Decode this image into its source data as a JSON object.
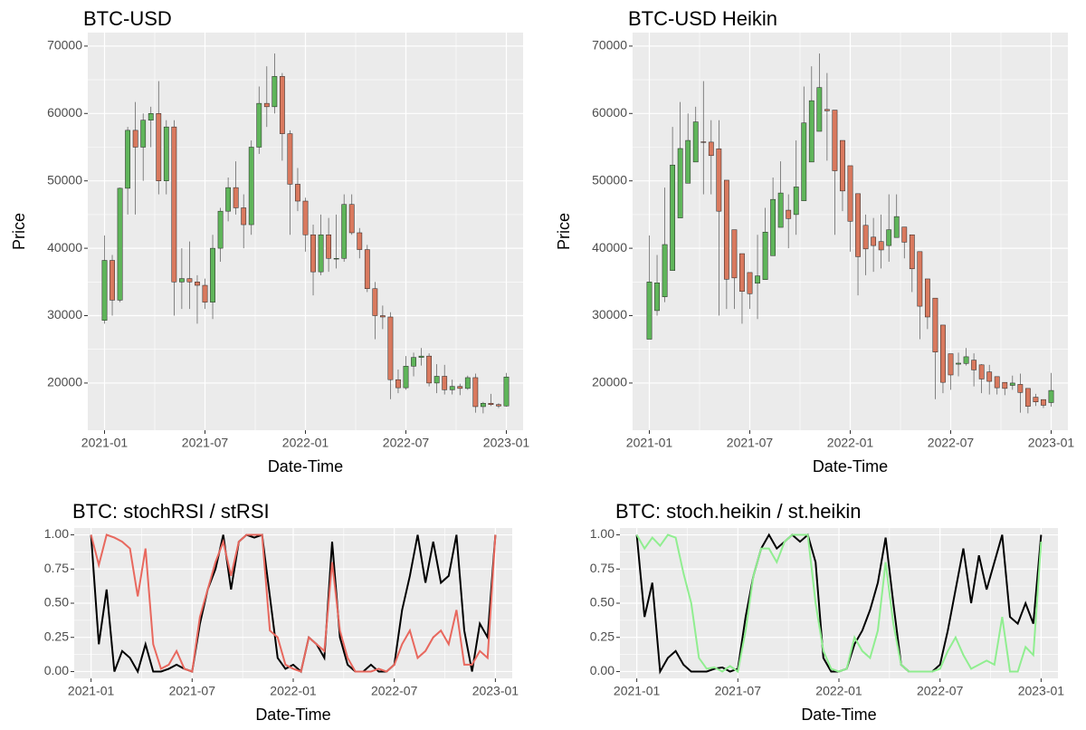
{
  "chart_data": [
    {
      "type": "candlestick",
      "title": "BTC-USD",
      "x_label": "Date-Time",
      "y_label": "Price",
      "xlim": [
        "2020-12",
        "2023-02"
      ],
      "xticks": [
        "2021-01",
        "2021-07",
        "2022-01",
        "2022-07",
        "2023-01"
      ],
      "ylim": [
        13000,
        72000
      ],
      "yticks": [
        20000,
        30000,
        40000,
        50000,
        60000,
        70000
      ],
      "grid": true,
      "up_color": "#5fb55a",
      "down_color": "#d9795e",
      "open": [
        29300,
        38200,
        32300,
        48900,
        57500,
        55000,
        59000,
        60000,
        50000,
        58000,
        35000,
        35500,
        35000,
        34500,
        32000,
        40000,
        45500,
        49000,
        46000,
        43500,
        55000,
        61500,
        61000,
        65500,
        57000,
        49500,
        47000,
        42000,
        36500,
        42000,
        38500,
        38500,
        46500,
        42300,
        39800,
        34000,
        30000,
        29800,
        20500,
        19300,
        22500,
        23800,
        24000,
        20000,
        21000,
        19000,
        19500,
        19200,
        20800,
        16500,
        17000,
        16800,
        16600
      ],
      "high": [
        41900,
        39000,
        49000,
        58000,
        61700,
        60000,
        61000,
        64800,
        59000,
        59000,
        40000,
        41000,
        36000,
        35500,
        42000,
        46000,
        50500,
        52900,
        48000,
        56000,
        64000,
        67000,
        68900,
        66000,
        57500,
        51900,
        47500,
        43500,
        45000,
        44500,
        45000,
        48000,
        48000,
        43000,
        40500,
        35000,
        31500,
        30500,
        22000,
        24000,
        24500,
        25200,
        24400,
        22800,
        22700,
        20500,
        19900,
        21100,
        21400,
        17200,
        18400,
        17000,
        21500
      ],
      "low": [
        28800,
        30000,
        32000,
        45000,
        45000,
        50000,
        55000,
        48000,
        48000,
        30000,
        31000,
        31000,
        28800,
        31000,
        29500,
        38000,
        44000,
        45000,
        40000,
        42000,
        54000,
        58000,
        60000,
        53000,
        42000,
        45500,
        39500,
        33000,
        36000,
        36500,
        37000,
        38000,
        42000,
        38500,
        33500,
        26500,
        28000,
        17600,
        18500,
        19000,
        21000,
        22600,
        19500,
        18500,
        18300,
        18300,
        18200,
        19000,
        15600,
        15500,
        16600,
        16300,
        16500
      ],
      "close": [
        38200,
        32300,
        48900,
        57500,
        55000,
        59000,
        60000,
        50000,
        58000,
        35000,
        35500,
        35000,
        34500,
        32000,
        40000,
        45500,
        49000,
        46000,
        43500,
        55000,
        61500,
        61000,
        65500,
        57000,
        49500,
        47000,
        42000,
        36500,
        42000,
        38500,
        38500,
        46500,
        42300,
        39800,
        34000,
        30000,
        29800,
        20500,
        19300,
        22500,
        23800,
        24000,
        20000,
        21000,
        19000,
        19500,
        19200,
        20800,
        16500,
        17000,
        16800,
        16600,
        20900
      ]
    },
    {
      "type": "candlestick",
      "title": "BTC-USD Heikin",
      "x_label": "Date-Time",
      "y_label": "Price",
      "xlim": [
        "2020-12",
        "2023-02"
      ],
      "xticks": [
        "2021-01",
        "2021-07",
        "2022-01",
        "2022-07",
        "2023-01"
      ],
      "ylim": [
        13000,
        72000
      ],
      "yticks": [
        20000,
        30000,
        40000,
        50000,
        60000,
        70000
      ],
      "grid": true,
      "up_color": "#5fb55a",
      "down_color": "#d9795e",
      "open": [
        26500,
        30750,
        32800,
        36700,
        44500,
        49650,
        52800,
        55800,
        55750,
        54750,
        50100,
        42750,
        39200,
        36400,
        34800,
        35350,
        38900,
        43100,
        45650,
        45000,
        47050,
        52800,
        57350,
        60600,
        60500,
        56000,
        52250,
        48100,
        43400,
        41650,
        41000,
        40400,
        41600,
        43150,
        42000,
        39500,
        35450,
        32600,
        28600,
        24350,
        22800,
        22900,
        23400,
        22700,
        21650,
        20950,
        20100,
        19650,
        19800,
        19200,
        17900,
        17550,
        17100
      ],
      "high": [
        41900,
        39000,
        49000,
        58000,
        61700,
        60000,
        61000,
        64800,
        59000,
        59000,
        50100,
        42750,
        39200,
        36400,
        42000,
        46000,
        50500,
        52900,
        48000,
        56000,
        64000,
        67000,
        68900,
        66000,
        60500,
        56000,
        52250,
        48100,
        45000,
        44500,
        45000,
        48000,
        48000,
        43150,
        42000,
        39500,
        35450,
        32600,
        28600,
        24350,
        24500,
        25200,
        24400,
        22800,
        22700,
        20950,
        20100,
        21100,
        21400,
        19200,
        18400,
        17550,
        21500
      ],
      "low": [
        26500,
        30000,
        32000,
        36700,
        44500,
        49650,
        52800,
        48000,
        48000,
        30000,
        31000,
        31000,
        28800,
        31000,
        29500,
        35350,
        38900,
        43100,
        40000,
        42000,
        47050,
        52800,
        57350,
        53000,
        42000,
        45500,
        39500,
        33000,
        36000,
        36500,
        37000,
        38000,
        41600,
        38500,
        33500,
        26500,
        28000,
        17600,
        18500,
        19000,
        21000,
        22600,
        19500,
        18500,
        18300,
        18300,
        18200,
        19000,
        15600,
        15500,
        16600,
        16300,
        16500
      ],
      "close": [
        35000,
        34875,
        40550,
        52350,
        54800,
        56000,
        58750,
        55700,
        53750,
        45500,
        35400,
        35600,
        33600,
        33250,
        35900,
        42400,
        47250,
        48200,
        44400,
        49100,
        58600,
        61900,
        63850,
        60400,
        51500,
        48500,
        44000,
        38750,
        39900,
        40400,
        39750,
        42750,
        44700,
        40900,
        36950,
        31400,
        29800,
        24600,
        20100,
        21200,
        22950,
        23900,
        21950,
        20600,
        20250,
        19300,
        19200,
        20000,
        18600,
        16550,
        17200,
        16700,
        18900
      ]
    },
    {
      "type": "line",
      "title": "BTC: stochRSI / stRSI",
      "x_label": "Date-Time",
      "xlim": [
        "2020-12",
        "2023-02"
      ],
      "xticks": [
        "2021-01",
        "2021-07",
        "2022-01",
        "2022-07",
        "2023-01"
      ],
      "ylim": [
        -0.05,
        1.05
      ],
      "yticks": [
        {
          "value": 0,
          "label": "0.00"
        },
        {
          "value": 0.25,
          "label": "0.25"
        },
        {
          "value": 0.5,
          "label": "0.50"
        },
        {
          "value": 0.75,
          "label": "0.75"
        },
        {
          "value": 1,
          "label": "1.00"
        }
      ],
      "grid": true,
      "series": [
        {
          "color": "#000000",
          "values": [
            1,
            0.2,
            0.6,
            0,
            0.15,
            0.1,
            0,
            0.2,
            0,
            0,
            0.02,
            0.05,
            0.02,
            0,
            0.35,
            0.6,
            0.75,
            1,
            0.6,
            0.95,
            1,
            0.98,
            1,
            0.55,
            0.1,
            0.02,
            0.05,
            0,
            0.25,
            0.2,
            0.1,
            0.95,
            0.25,
            0.05,
            0,
            0,
            0.05,
            0,
            0,
            0.05,
            0.45,
            0.7,
            1,
            0.65,
            0.95,
            0.65,
            0.7,
            1,
            0.3,
            0,
            0.35,
            0.25,
            1
          ]
        },
        {
          "color": "#e8685e",
          "values": [
            1,
            0.78,
            1,
            0.98,
            0.95,
            0.9,
            0.55,
            0.9,
            0.2,
            0.02,
            0.05,
            0.15,
            0.02,
            0,
            0.4,
            0.6,
            0.8,
            0.95,
            0.7,
            0.95,
            1,
            1,
            1,
            0.3,
            0.25,
            0.05,
            0.02,
            0,
            0.25,
            0.2,
            0.15,
            0.8,
            0.3,
            0.1,
            0,
            0,
            0,
            0.02,
            0,
            0.05,
            0.2,
            0.3,
            0.1,
            0.15,
            0.25,
            0.3,
            0.2,
            0.45,
            0.05,
            0.05,
            0.15,
            0.1,
            1
          ]
        }
      ]
    },
    {
      "type": "line",
      "title": "BTC: stoch.heikin / st.heikin",
      "x_label": "Date-Time",
      "xlim": [
        "2020-12",
        "2023-02"
      ],
      "xticks": [
        "2021-01",
        "2021-07",
        "2022-01",
        "2022-07",
        "2023-01"
      ],
      "ylim": [
        -0.05,
        1.05
      ],
      "yticks": [
        {
          "value": 0,
          "label": "0.00"
        },
        {
          "value": 0.25,
          "label": "0.25"
        },
        {
          "value": 0.5,
          "label": "0.50"
        },
        {
          "value": 0.75,
          "label": "0.75"
        },
        {
          "value": 1,
          "label": "1.00"
        }
      ],
      "grid": true,
      "series": [
        {
          "color": "#000000",
          "values": [
            1,
            0.4,
            0.65,
            0,
            0.1,
            0.15,
            0.05,
            0,
            0,
            0,
            0.02,
            0.03,
            0,
            0.02,
            0.4,
            0.7,
            0.9,
            1,
            0.9,
            0.95,
            1,
            0.95,
            1,
            0.8,
            0.1,
            0,
            0,
            0.02,
            0.2,
            0.3,
            0.45,
            0.65,
            0.98,
            0.5,
            0.05,
            0,
            0,
            0,
            0,
            0.05,
            0.3,
            0.6,
            0.9,
            0.5,
            0.85,
            0.6,
            0.8,
            1,
            0.4,
            0.35,
            0.5,
            0.35,
            1
          ]
        },
        {
          "color": "#90ee90",
          "values": [
            1,
            0.9,
            0.98,
            0.92,
            1,
            0.98,
            0.72,
            0.5,
            0.1,
            0.02,
            0.03,
            0,
            0.04,
            0,
            0.3,
            0.7,
            0.9,
            0.9,
            0.8,
            0.95,
            1,
            1,
            1,
            0.5,
            0.15,
            0.02,
            0,
            0.02,
            0.25,
            0.15,
            0.1,
            0.3,
            0.8,
            0.35,
            0.05,
            0,
            0,
            0,
            0,
            0.02,
            0.15,
            0.25,
            0.12,
            0.02,
            0.05,
            0.08,
            0.05,
            0.4,
            0,
            0,
            0.18,
            0.12,
            0.95
          ]
        }
      ]
    }
  ]
}
